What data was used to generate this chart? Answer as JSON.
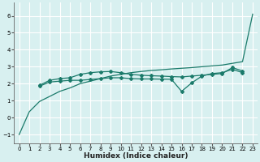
{
  "xlabel": "Humidex (Indice chaleur)",
  "background_color": "#d8f0f0",
  "grid_color": "#ffffff",
  "line_color": "#1a7a6a",
  "xlim": [
    -0.5,
    23.5
  ],
  "ylim": [
    -1.5,
    6.8
  ],
  "yticks": [
    -1,
    0,
    1,
    2,
    3,
    4,
    5,
    6
  ],
  "xticks": [
    0,
    1,
    2,
    3,
    4,
    5,
    6,
    7,
    8,
    9,
    10,
    11,
    12,
    13,
    14,
    15,
    16,
    17,
    18,
    19,
    20,
    21,
    22,
    23
  ],
  "x": [
    0,
    1,
    2,
    3,
    4,
    5,
    6,
    7,
    8,
    9,
    10,
    11,
    12,
    13,
    14,
    15,
    16,
    17,
    18,
    19,
    20,
    21,
    22,
    23
  ],
  "line_straight": [
    -1.0,
    0.35,
    0.95,
    1.25,
    1.55,
    1.75,
    2.0,
    2.15,
    2.3,
    2.45,
    2.55,
    2.65,
    2.72,
    2.78,
    2.82,
    2.87,
    2.91,
    2.95,
    3.0,
    3.05,
    3.1,
    3.2,
    3.3,
    6.1
  ],
  "line_markers": [
    null,
    null,
    1.9,
    2.2,
    2.3,
    2.35,
    2.55,
    2.65,
    2.7,
    2.72,
    2.65,
    2.55,
    2.5,
    2.47,
    2.45,
    2.42,
    2.4,
    2.45,
    2.5,
    2.55,
    2.6,
    2.95,
    2.75,
    null
  ],
  "line_lower": [
    null,
    null,
    1.85,
    2.1,
    2.15,
    2.2,
    2.2,
    2.25,
    2.3,
    2.35,
    2.35,
    2.3,
    2.28,
    2.28,
    2.27,
    2.26,
    1.55,
    2.05,
    2.45,
    2.6,
    2.65,
    2.85,
    2.65,
    null
  ]
}
